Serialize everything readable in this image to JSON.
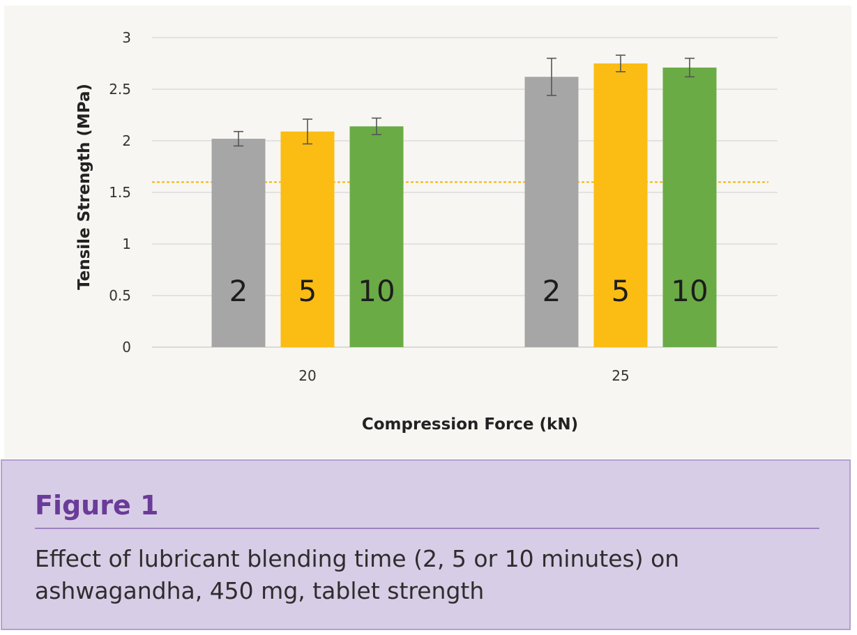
{
  "chart_data": {
    "type": "bar",
    "xlabel": "Compression Force (kN)",
    "ylabel": "Tensile Strength (MPa)",
    "ylim": [
      0,
      3
    ],
    "yticks": [
      "0",
      "0.5",
      "1",
      "1.5",
      "2",
      "2.5",
      "3"
    ],
    "categories": [
      "20",
      "25"
    ],
    "grid": true,
    "series": [
      {
        "name": "2",
        "color": "#a6a6a6",
        "values": [
          2.02,
          2.62
        ],
        "errors": [
          0.07,
          0.18
        ]
      },
      {
        "name": "5",
        "color": "#fbbd13",
        "values": [
          2.09,
          2.75
        ],
        "errors": [
          0.12,
          0.08
        ]
      },
      {
        "name": "10",
        "color": "#6aab46",
        "values": [
          2.14,
          2.71
        ],
        "errors": [
          0.08,
          0.09
        ]
      }
    ],
    "reference_line": {
      "value": 1.6,
      "color": "#f5b400",
      "style": "dashed"
    }
  },
  "caption": {
    "title": "Figure 1",
    "text": "Effect of lubricant blending time (2, 5 or 10 minutes) on ashwagandha, 450 mg, tablet strength"
  },
  "colors": {
    "caption_background": "#d8cde6",
    "caption_title": "#6a3b98",
    "chart_background": "#f7f6f2"
  }
}
